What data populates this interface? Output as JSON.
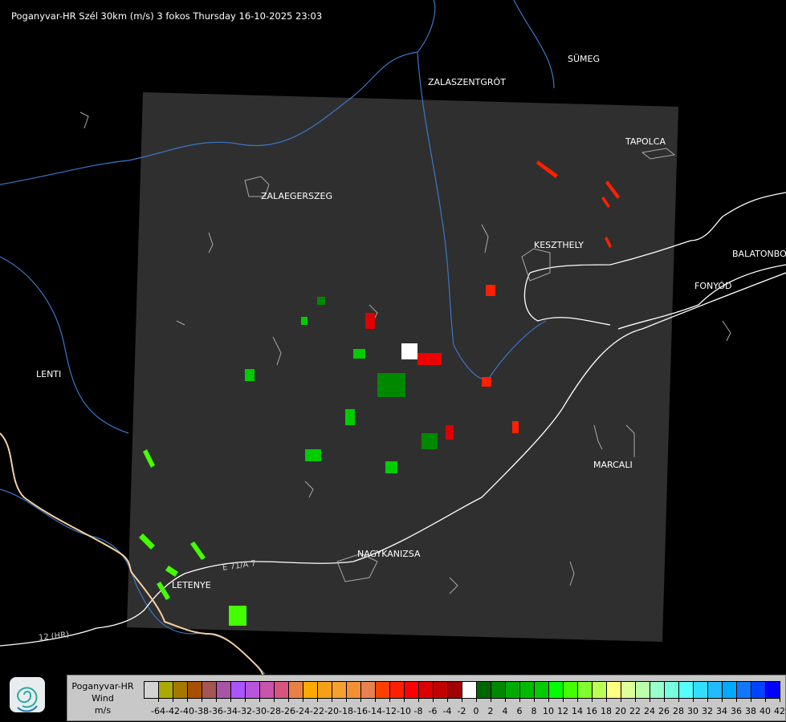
{
  "title": "Poganyvar-HR Szél 30km (m/s) 3 fokos Thursday 16-10-2025 23:03",
  "towns": [
    {
      "name": "SÜMEG"
    },
    {
      "name": "ZALASZENTGRÓT"
    },
    {
      "name": "TAPOLCA"
    },
    {
      "name": "ZALAEGERSZEG"
    },
    {
      "name": "KESZTHELY"
    },
    {
      "name": "BALATONBO"
    },
    {
      "name": "FONYÓD"
    },
    {
      "name": "LENTI"
    },
    {
      "name": "MARCALI"
    },
    {
      "name": "NAGYKANIZSA"
    },
    {
      "name": "LETENYE"
    }
  ],
  "roads": [
    "E 71/A 7",
    "12 (HR)"
  ],
  "legend": {
    "radar": "Poganyvar-HR",
    "quantity": "Wind",
    "unit": "m/s",
    "labels": [
      "-64",
      "-42",
      "-40",
      "-38",
      "-36",
      "-34",
      "-32",
      "-30",
      "-28",
      "-26",
      "-24",
      "-22",
      "-20",
      "-18",
      "-16",
      "-14",
      "-12",
      "-10",
      "-8",
      "-6",
      "-4",
      "-2",
      "0",
      "2",
      "4",
      "6",
      "8",
      "10",
      "12",
      "14",
      "16",
      "18",
      "20",
      "22",
      "24",
      "26",
      "28",
      "30",
      "32",
      "34",
      "36",
      "38",
      "40",
      "42"
    ],
    "colors": [
      "#d3d3d3",
      "#aaaa00",
      "#a67800",
      "#a65000",
      "#a65555",
      "#a855a8",
      "#aa55ff",
      "#b855dd",
      "#c855aa",
      "#d85580",
      "#e88045",
      "#ffaa00",
      "#f5a01a",
      "#f5a030",
      "#f59030",
      "#e88050",
      "#ff4000",
      "#ff2000",
      "#ff0000",
      "#dd0000",
      "#c00000",
      "#a00000",
      "#ffffff",
      "#006600",
      "#008800",
      "#00aa00",
      "#00bb00",
      "#00cc00",
      "#00ff00",
      "#44ff00",
      "#80ff30",
      "#bbff55",
      "#ffff80",
      "#ddff99",
      "#bbffaa",
      "#99ffcc",
      "#77ffdd",
      "#55ffff",
      "#33ddff",
      "#22bbff",
      "#00aaff",
      "#1177ff",
      "#0044ff",
      "#0000ff"
    ]
  },
  "logo_icon": "swirl-logo-icon"
}
